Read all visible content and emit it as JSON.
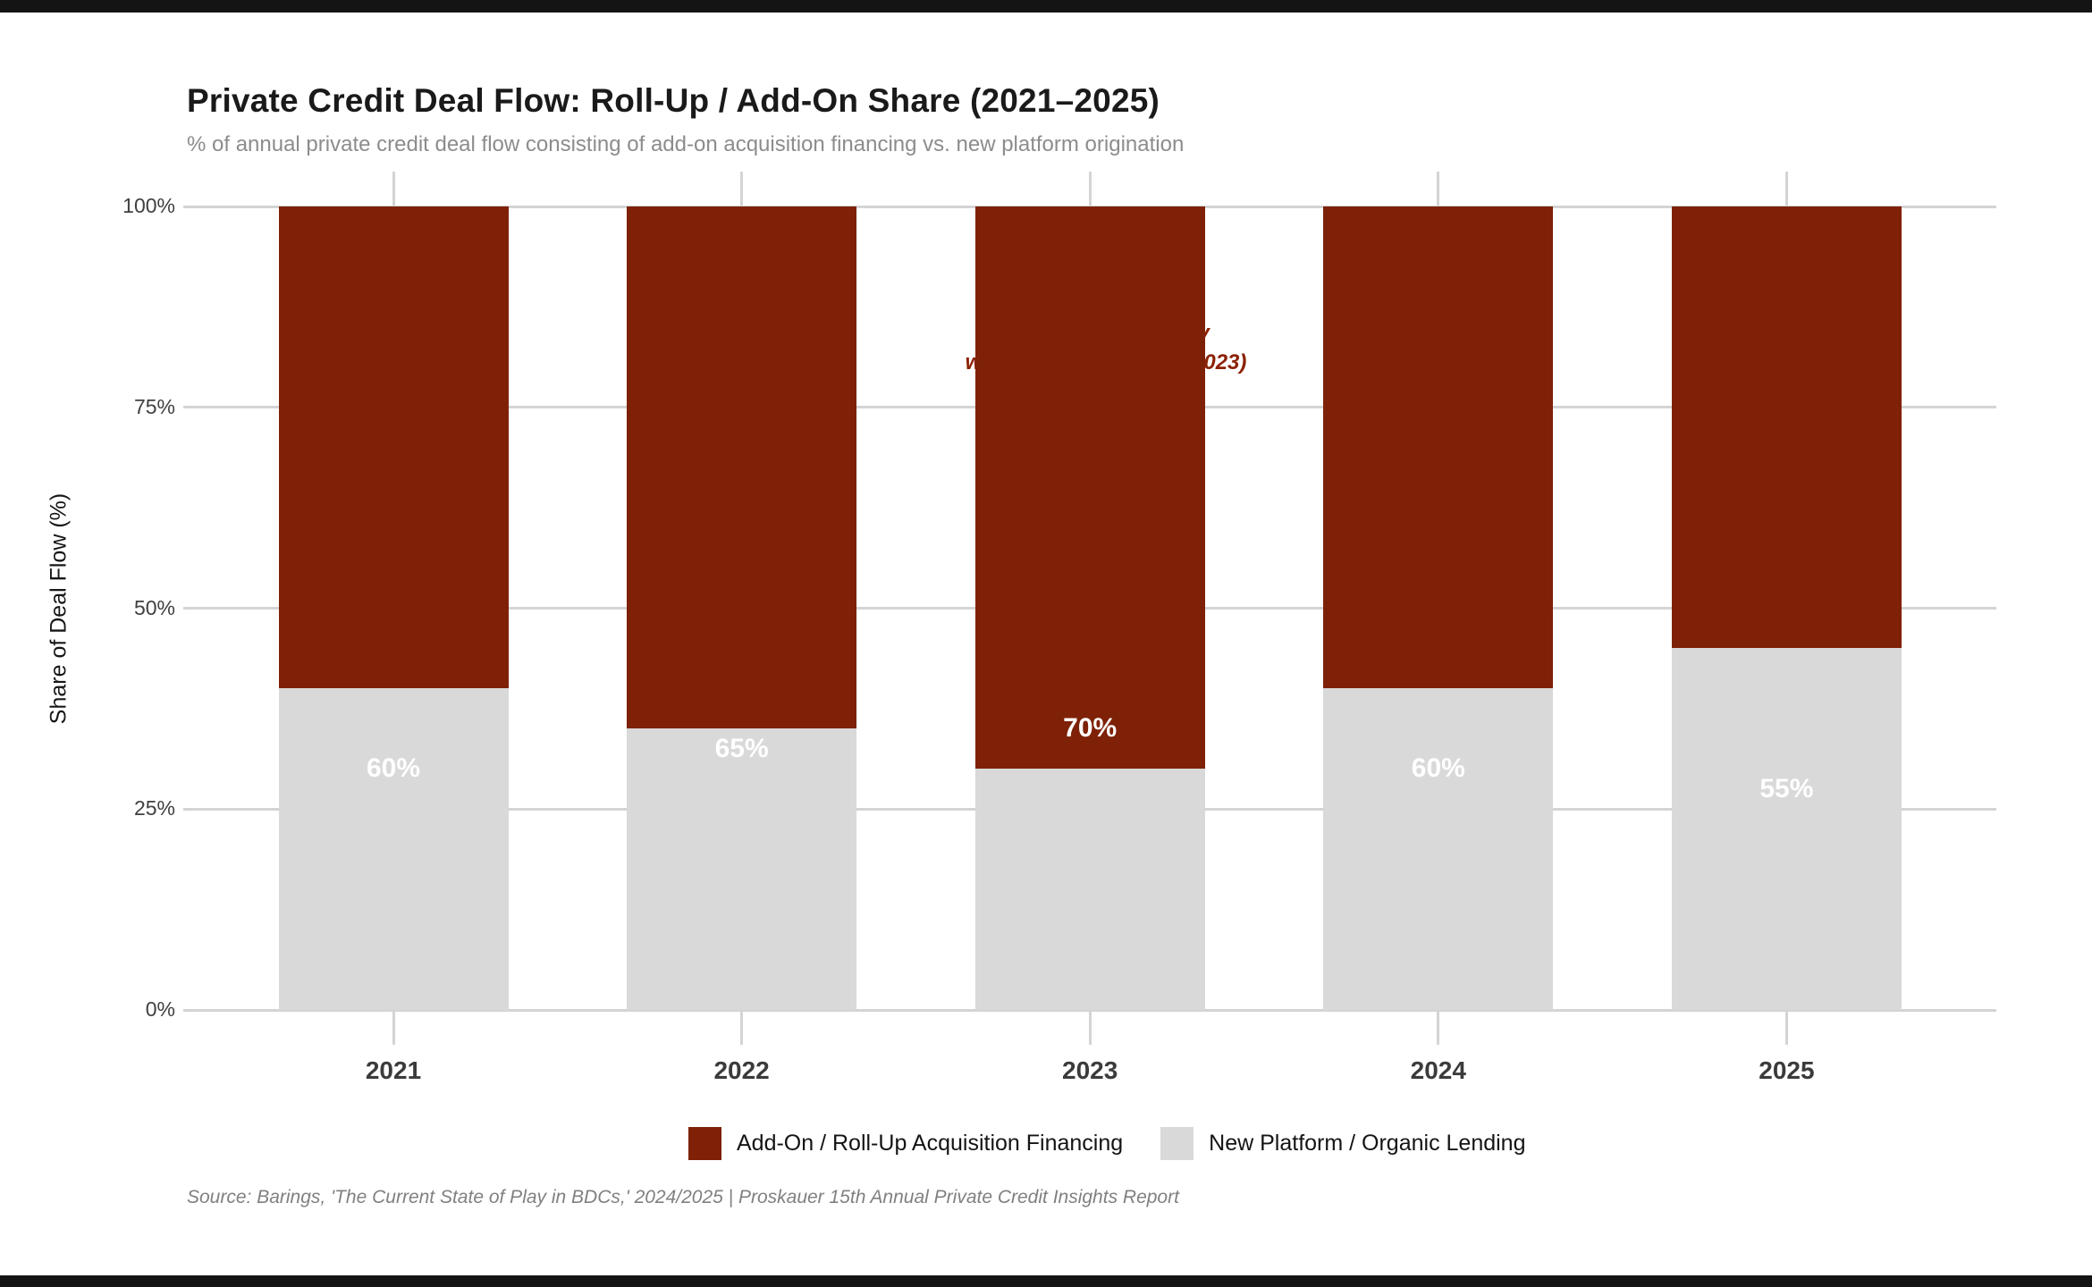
{
  "header": {
    "title": "Private Credit Deal Flow: Roll-Up / Add-On Share (2021–2025)",
    "subtitle": "% of annual private credit deal flow consisting of add-on acquisition financing vs. new platform origination"
  },
  "chart_data": {
    "type": "bar",
    "subtype": "stacked-percent",
    "categories": [
      "2021",
      "2022",
      "2023",
      "2024",
      "2025"
    ],
    "series": [
      {
        "name": "Add-On / Roll-Up Acquisition Financing",
        "values": [
          60,
          65,
          70,
          60,
          55
        ],
        "color": "#7e2106"
      },
      {
        "name": "New Platform / Organic Lending",
        "values": [
          40,
          35,
          30,
          40,
          45
        ],
        "color": "#d9d9d9"
      }
    ],
    "bar_labels": [
      "60%",
      "65%",
      "70%",
      "60%",
      "55%"
    ],
    "title": "Private Credit Deal Flow: Roll-Up / Add-On Share (2021–2025)",
    "xlabel": "",
    "ylabel": "Share of Deal Flow (%)",
    "yticks": [
      "0%",
      "25%",
      "50%",
      "75%",
      "100%"
    ],
    "ytick_values": [
      0,
      25,
      50,
      75,
      100
    ],
    "ylim": [
      0,
      100
    ],
    "grid": "horizontal",
    "legend_position": "bottom",
    "annotation": {
      "line1": "Peak add-on activity",
      "line2": "was 70% of deal flow (2023)",
      "color": "#8b2104"
    }
  },
  "footer": {
    "source": "Source: Barings, 'The Current State of Play in BDCs,' 2024/2025 | Proskauer 15th Annual Private Credit Insights Report"
  }
}
